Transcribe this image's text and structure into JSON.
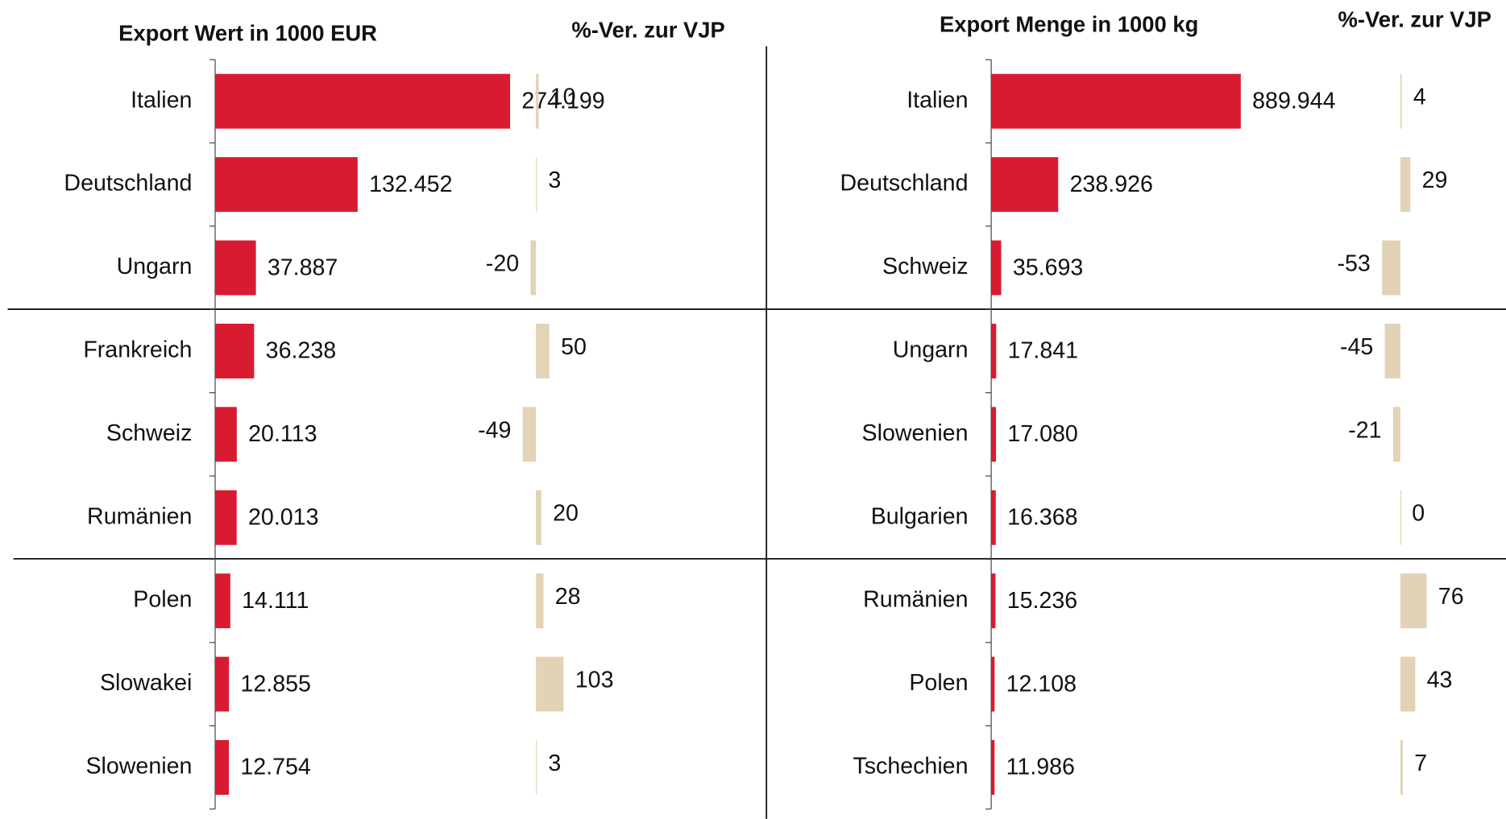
{
  "chart_data": [
    {
      "type": "bar",
      "orientation": "horizontal",
      "title": "Export Wert in 1000 EUR",
      "categories": [
        "Italien",
        "Deutschland",
        "Ungarn",
        "Frankreich",
        "Schweiz",
        "Rumänien",
        "Polen",
        "Slowakei",
        "Slowenien"
      ],
      "values": [
        274199,
        132452,
        37887,
        36238,
        20113,
        20013,
        14111,
        12855,
        12754
      ],
      "value_labels": [
        "274.199",
        "132.452",
        "37.887",
        "36.238",
        "20.113",
        "20.013",
        "14.111",
        "12.855",
        "12.754"
      ],
      "color": "#d81b30",
      "xlim": [
        0,
        300000
      ]
    },
    {
      "type": "bar",
      "orientation": "horizontal",
      "title": "%-Ver. zur VJP",
      "values": [
        10,
        3,
        -20,
        50,
        -49,
        20,
        28,
        103,
        3
      ],
      "color": "#e2d3b6",
      "xlim": [
        -100,
        150
      ]
    },
    {
      "type": "bar",
      "orientation": "horizontal",
      "title": "Export Menge in 1000 kg",
      "categories": [
        "Italien",
        "Deutschland",
        "Schweiz",
        "Ungarn",
        "Slowenien",
        "Bulgarien",
        "Rumänien",
        "Polen",
        "Tschechien"
      ],
      "values": [
        889944,
        238926,
        35693,
        17841,
        17080,
        16368,
        15236,
        12108,
        11986
      ],
      "value_labels": [
        "889.944",
        "238.926",
        "35.693",
        "17.841",
        "17.080",
        "16.368",
        "15.236",
        "12.108",
        "11.986"
      ],
      "color": "#d81b30",
      "xlim": [
        0,
        1000000
      ]
    },
    {
      "type": "bar",
      "orientation": "horizontal",
      "title": "%-Ver. zur VJP",
      "values": [
        4,
        29,
        -53,
        -45,
        -21,
        0,
        76,
        43,
        7
      ],
      "color": "#e2d3b6",
      "xlim": [
        -100,
        100
      ]
    }
  ]
}
